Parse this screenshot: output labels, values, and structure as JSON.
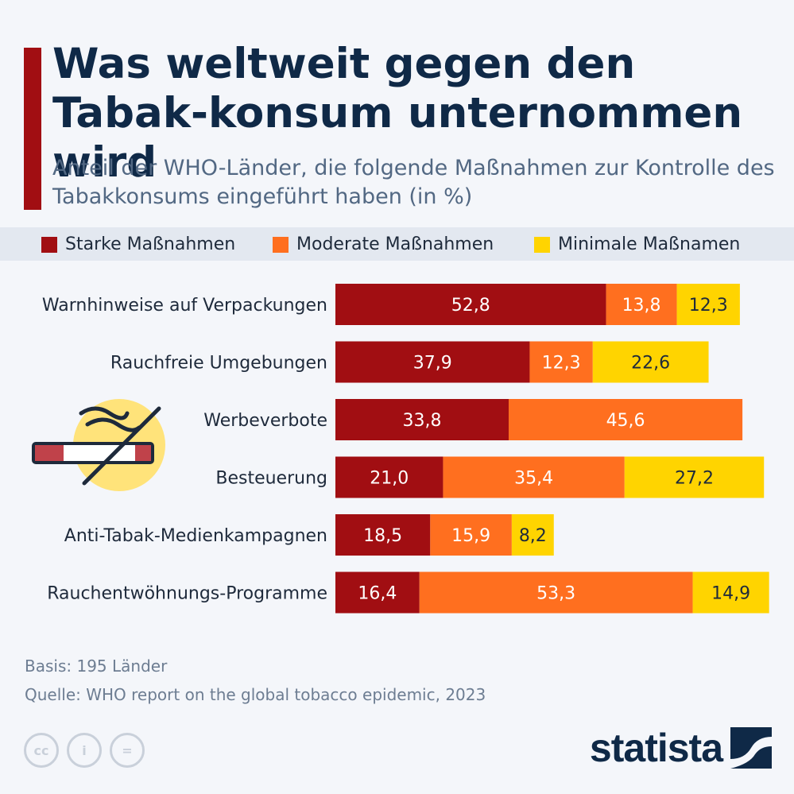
{
  "header": {
    "title": "Was weltweit gegen den Tabak-konsum unternommen wird",
    "subtitle": "Anteil der WHO-Länder, die folgende Maßnahmen zur Kontrolle des Tabakkonsums eingeführt haben (in %)"
  },
  "legend": {
    "items": [
      {
        "label": "Starke Maßnahmen",
        "color": "#a10e12"
      },
      {
        "label": "Moderate Maßnahmen",
        "color": "#ff6f1f"
      },
      {
        "label": "Minimale Maßnamen",
        "color": "#ffd400"
      }
    ]
  },
  "chart_data": {
    "type": "bar",
    "orientation": "horizontal",
    "stacked": true,
    "categories": [
      "Warnhinweise auf Verpackungen",
      "Rauchfreie Umgebungen",
      "Werbeverbote",
      "Besteuerung",
      "Anti-Tabak-Medienkampagnen",
      "Rauchentwöhnungs-Programme"
    ],
    "series": [
      {
        "name": "Starke Maßnahmen",
        "color": "#a10e12",
        "values": [
          52.8,
          37.9,
          33.8,
          21.0,
          18.5,
          16.4
        ],
        "labels": [
          "52,8",
          "37,9",
          "33,8",
          "21,0",
          "18,5",
          "16,4"
        ],
        "label_color": "#ffffff"
      },
      {
        "name": "Moderate Maßnahmen",
        "color": "#ff6f1f",
        "values": [
          13.8,
          12.3,
          45.6,
          35.4,
          15.9,
          53.3
        ],
        "labels": [
          "13,8",
          "12,3",
          "45,6",
          "35,4",
          "15,9",
          "53,3"
        ],
        "label_color": "#ffffff"
      },
      {
        "name": "Minimale Maßnamen",
        "color": "#ffd400",
        "values": [
          12.3,
          22.6,
          0,
          27.2,
          8.2,
          14.9
        ],
        "labels": [
          "12,3",
          "22,6",
          "",
          "27,2",
          "8,2",
          "14,9"
        ],
        "label_color": "#1e2a3b"
      }
    ]
  },
  "footer": {
    "basis": "Basis: 195 Länder",
    "source": "Quelle: WHO report on the global tobacco epidemic, 2023",
    "license_icons": [
      "cc-icon",
      "attribution-icon",
      "no-derivatives-icon"
    ],
    "license_glyphs": [
      "cc",
      "i",
      "="
    ],
    "brand": "statista"
  }
}
